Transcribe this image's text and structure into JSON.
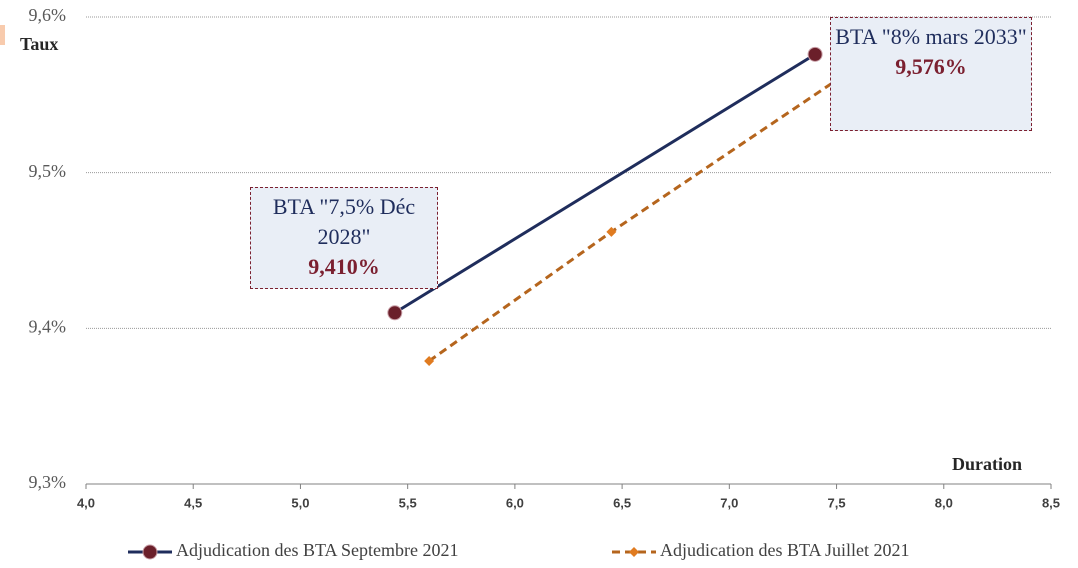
{
  "chart_data": {
    "type": "line",
    "x_label": "Duration",
    "y_label": "Taux",
    "xlim": [
      4.0,
      8.5
    ],
    "xticks": [
      {
        "value": 4.0,
        "label": "4,0"
      },
      {
        "value": 4.5,
        "label": "4,5"
      },
      {
        "value": 5.0,
        "label": "5,0"
      },
      {
        "value": 5.5,
        "label": "5,5"
      },
      {
        "value": 6.0,
        "label": "6,0"
      },
      {
        "value": 6.5,
        "label": "6,5"
      },
      {
        "value": 7.0,
        "label": "7,0"
      },
      {
        "value": 7.5,
        "label": "7,5"
      },
      {
        "value": 8.0,
        "label": "8,0"
      },
      {
        "value": 8.5,
        "label": "8,5"
      }
    ],
    "ylim": [
      9.3,
      9.6
    ],
    "yticks": [
      {
        "value": 9.3,
        "label": "9,3%"
      },
      {
        "value": 9.4,
        "label": "9,4%"
      },
      {
        "value": 9.5,
        "label": "9,5%"
      },
      {
        "value": 9.6,
        "label": "9,6%"
      }
    ],
    "grid": true,
    "series": [
      {
        "name": "Adjudication des BTA Septembre 2021",
        "color": "#1f2d5c",
        "marker_color": "#6b1f2a",
        "dashed": false,
        "marker": "circle",
        "x": [
          5.44,
          7.4
        ],
        "values": [
          9.41,
          9.576
        ],
        "point_labels": [
          "BTA \"7,5% Déc 2028\"",
          "BTA \"8% mars 2033\""
        ],
        "value_labels": [
          "9,410%",
          "9,576%"
        ]
      },
      {
        "name": "Adjudication des BTA Juillet 2021",
        "color": "#b5651d",
        "marker_color": "#e07b20",
        "dashed": true,
        "marker": "diamond",
        "x": [
          5.6,
          6.45,
          7.56
        ],
        "values": [
          9.379,
          9.462,
          9.565
        ]
      }
    ]
  }
}
